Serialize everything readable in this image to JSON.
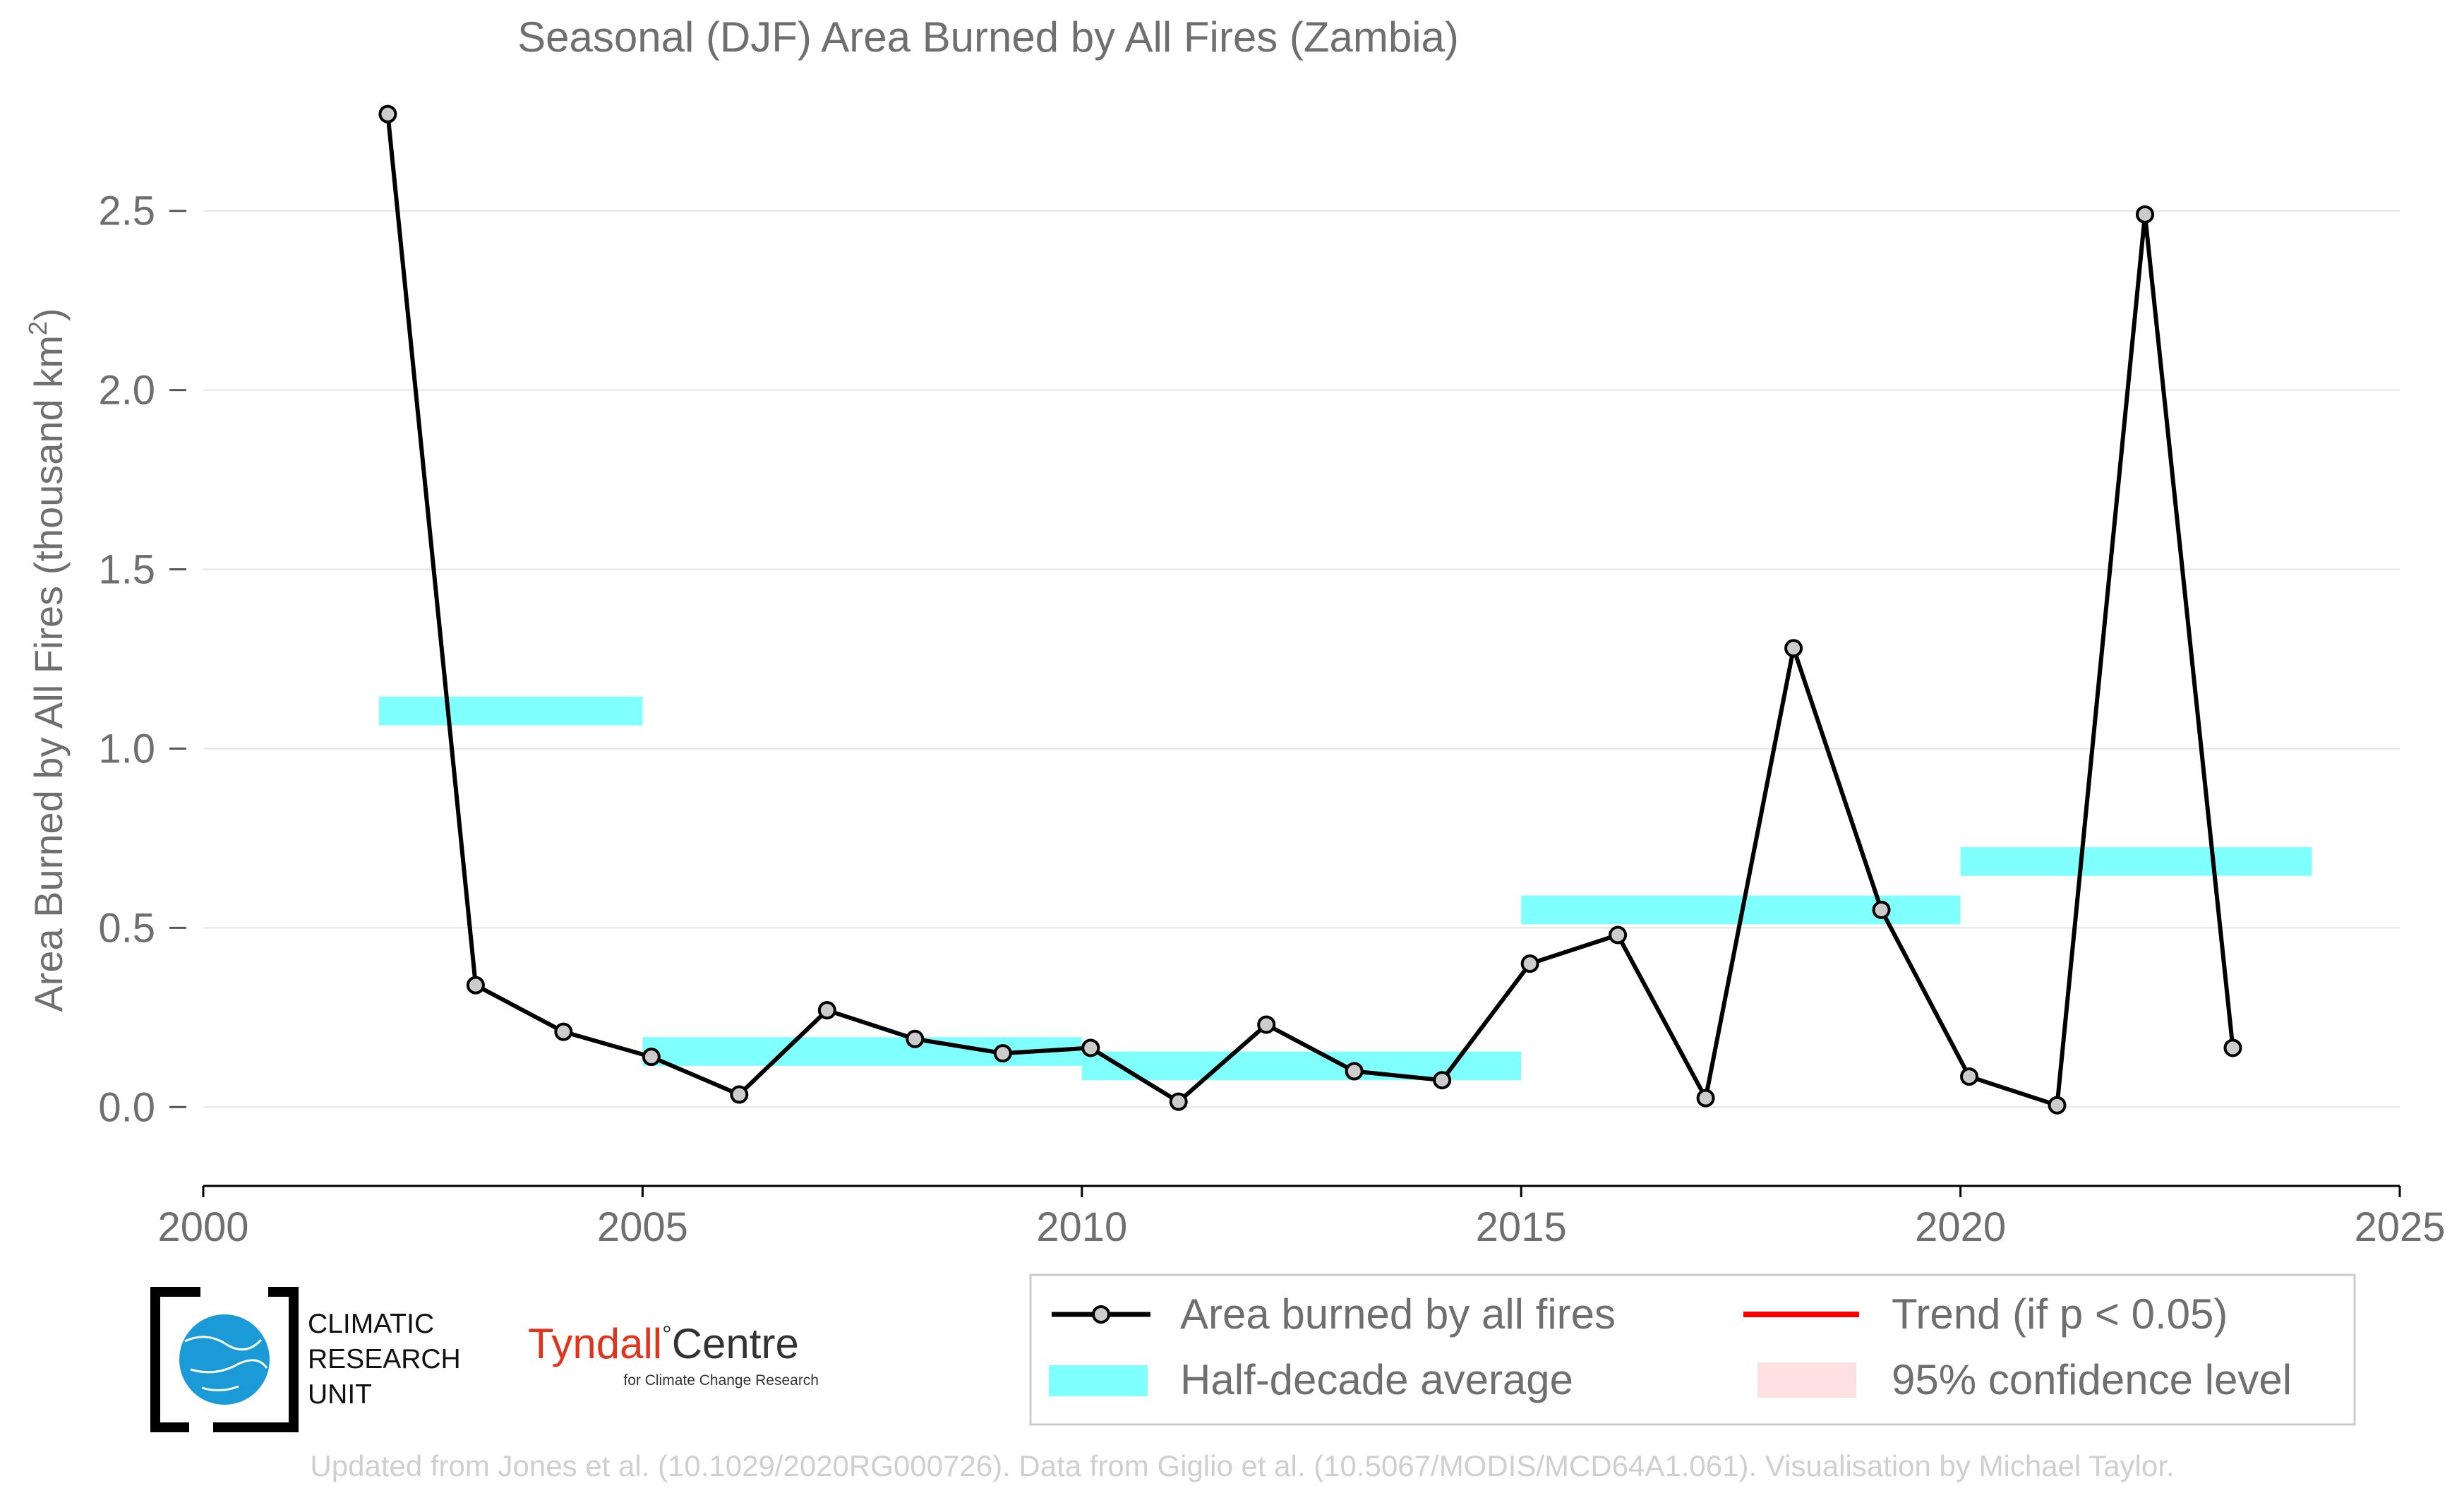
{
  "chart_data": {
    "type": "line",
    "title": "Seasonal (DJF) Area Burned by All Fires (Zambia)",
    "ylabel": "Area Burned by All Fires (thousand km",
    "ylabel_sup": "2",
    "ylabel_close": ")",
    "xlim": [
      2000,
      2025
    ],
    "ylim": [
      -0.22,
      2.85
    ],
    "x_ticks": [
      2000,
      2005,
      2010,
      2015,
      2020,
      2025
    ],
    "y_ticks": [
      0.0,
      0.5,
      1.0,
      1.5,
      2.0,
      2.5
    ],
    "y_tick_labels": [
      "0.0",
      "0.5",
      "1.0",
      "1.5",
      "2.0",
      "2.5"
    ],
    "grid": "horizontal",
    "series": [
      {
        "name": "Area burned by all fires",
        "color": "#000000",
        "marker_fill": "#cccccc",
        "x": [
          2002.1,
          2003.1,
          2004.1,
          2005.1,
          2006.1,
          2007.1,
          2008.1,
          2009.1,
          2010.1,
          2011.1,
          2012.1,
          2013.1,
          2014.1,
          2015.1,
          2016.1,
          2017.1,
          2018.1,
          2019.1,
          2020.1,
          2021.1,
          2022.1,
          2023.1
        ],
        "y": [
          2.77,
          0.34,
          0.21,
          0.14,
          0.035,
          0.27,
          0.19,
          0.15,
          0.165,
          0.015,
          0.23,
          0.1,
          0.075,
          0.4,
          0.48,
          0.025,
          1.28,
          0.55,
          0.085,
          0.005,
          2.49,
          0.165
        ]
      }
    ],
    "half_decade_average": {
      "name": "Half-decade average",
      "color": "#80ffff",
      "band_half_height": 0.04,
      "segments": [
        {
          "x0": 2002.0,
          "x1": 2005.0,
          "y": 1.105
        },
        {
          "x0": 2005.0,
          "x1": 2010.0,
          "y": 0.155
        },
        {
          "x0": 2010.0,
          "x1": 2015.0,
          "y": 0.115
        },
        {
          "x0": 2015.0,
          "x1": 2020.0,
          "y": 0.55
        },
        {
          "x0": 2020.0,
          "x1": 2024.0,
          "y": 0.685
        }
      ]
    },
    "legend": {
      "placement": "bottom-right",
      "items": [
        {
          "label": "Area burned by all fires",
          "kind": "line-marker",
          "color": "#000000"
        },
        {
          "label": "Trend (if p < 0.05)",
          "kind": "line",
          "color": "#ff0000"
        },
        {
          "label": "Half-decade average",
          "kind": "band",
          "color": "#80ffff"
        },
        {
          "label": "95% confidence level",
          "kind": "band",
          "color": "#ffe0e0"
        }
      ]
    }
  },
  "logos": {
    "cru_lines": [
      "CLIMATIC",
      "RESEARCH",
      "UNIT"
    ],
    "tyndall_main": "Tyndall",
    "tyndall_degree": "°",
    "tyndall_centre": "Centre",
    "tyndall_sub": "for Climate Change Research"
  },
  "footer": "Updated from Jones et al. (10.1029/2020RG000726). Data from Giglio et al. (10.5067/MODIS/MCD64A1.061). Visualisation by Michael Taylor."
}
